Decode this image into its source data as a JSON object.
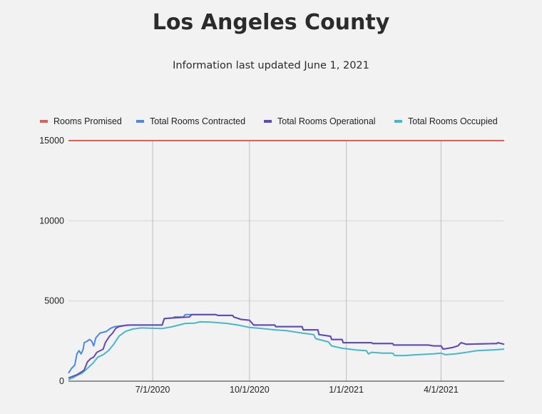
{
  "title": "Los Angeles County",
  "subtitle": "Information last updated June 1, 2021",
  "chart_data": {
    "type": "line",
    "x_axis": {
      "type": "date",
      "min": "2020-04-12",
      "max": "2021-05-31",
      "ticks": [
        "2020-07-01",
        "2020-10-01",
        "2021-01-01",
        "2021-04-01"
      ],
      "tick_labels": [
        "7/1/2020",
        "10/1/2020",
        "1/1/2021",
        "4/1/2021"
      ]
    },
    "y_axis": {
      "min": 0,
      "max": 15000,
      "ticks": [
        0,
        5000,
        10000,
        15000
      ],
      "tick_labels": [
        "0",
        "5000",
        "10000",
        "15000"
      ]
    },
    "legend_position": "top",
    "series": [
      {
        "name": "Rooms Promised",
        "color": "#e06055",
        "points": [
          [
            "2020-04-12",
            15000
          ],
          [
            "2021-05-31",
            15000
          ]
        ]
      },
      {
        "name": "Total Rooms Contracted",
        "color": "#4a89e8",
        "points": [
          [
            "2020-04-12",
            500
          ],
          [
            "2020-04-15",
            800
          ],
          [
            "2020-04-18",
            1000
          ],
          [
            "2020-04-20",
            1700
          ],
          [
            "2020-04-22",
            1900
          ],
          [
            "2020-04-24",
            1700
          ],
          [
            "2020-04-26",
            2000
          ],
          [
            "2020-04-27",
            2400
          ],
          [
            "2020-04-30",
            2500
          ],
          [
            "2020-05-02",
            2600
          ],
          [
            "2020-05-04",
            2500
          ],
          [
            "2020-05-06",
            2200
          ],
          [
            "2020-05-08",
            2700
          ],
          [
            "2020-05-12",
            3000
          ],
          [
            "2020-05-18",
            3100
          ],
          [
            "2020-05-22",
            3300
          ],
          [
            "2020-05-26",
            3400
          ],
          [
            "2020-06-01",
            3450
          ],
          [
            "2020-06-10",
            3500
          ],
          [
            "2020-07-10",
            3500
          ],
          [
            "2020-07-12",
            3900
          ],
          [
            "2020-07-20",
            3950
          ],
          [
            "2020-07-22",
            4000
          ],
          [
            "2020-07-30",
            4000
          ],
          [
            "2020-08-01",
            4150
          ],
          [
            "2020-08-30",
            4150
          ],
          [
            "2020-09-01",
            4100
          ],
          [
            "2020-09-15",
            4100
          ],
          [
            "2020-09-16",
            4000
          ],
          [
            "2020-09-23",
            3850
          ],
          [
            "2020-10-01",
            3800
          ],
          [
            "2020-10-05",
            3500
          ],
          [
            "2020-10-25",
            3500
          ],
          [
            "2020-10-26",
            3400
          ],
          [
            "2020-11-20",
            3400
          ],
          [
            "2020-11-21",
            3200
          ],
          [
            "2020-12-05",
            3200
          ],
          [
            "2020-12-06",
            2900
          ],
          [
            "2020-12-12",
            2850
          ],
          [
            "2020-12-17",
            2800
          ],
          [
            "2020-12-18",
            2600
          ],
          [
            "2020-12-28",
            2600
          ],
          [
            "2020-12-29",
            2400
          ],
          [
            "2021-01-25",
            2400
          ],
          [
            "2021-01-26",
            2350
          ],
          [
            "2021-02-14",
            2350
          ],
          [
            "2021-02-15",
            2250
          ],
          [
            "2021-03-20",
            2250
          ],
          [
            "2021-03-25",
            2200
          ],
          [
            "2021-04-01",
            2200
          ],
          [
            "2021-04-03",
            2000
          ],
          [
            "2021-04-08",
            2050
          ],
          [
            "2021-04-12",
            2100
          ],
          [
            "2021-04-17",
            2200
          ],
          [
            "2021-04-20",
            2400
          ],
          [
            "2021-04-25",
            2300
          ],
          [
            "2021-05-24",
            2350
          ],
          [
            "2021-05-25",
            2400
          ],
          [
            "2021-05-31",
            2300
          ]
        ]
      },
      {
        "name": "Total Rooms Operational",
        "color": "#6548b3",
        "points": [
          [
            "2020-04-12",
            200
          ],
          [
            "2020-04-20",
            400
          ],
          [
            "2020-04-25",
            600
          ],
          [
            "2020-04-27",
            700
          ],
          [
            "2020-04-30",
            1200
          ],
          [
            "2020-05-03",
            1400
          ],
          [
            "2020-05-06",
            1500
          ],
          [
            "2020-05-09",
            1800
          ],
          [
            "2020-05-15",
            2000
          ],
          [
            "2020-05-17",
            2400
          ],
          [
            "2020-05-19",
            2600
          ],
          [
            "2020-05-21",
            2800
          ],
          [
            "2020-05-24",
            3000
          ],
          [
            "2020-05-27",
            3300
          ],
          [
            "2020-05-30",
            3400
          ],
          [
            "2020-06-03",
            3450
          ],
          [
            "2020-06-07",
            3500
          ],
          [
            "2020-07-10",
            3500
          ],
          [
            "2020-07-12",
            3900
          ],
          [
            "2020-07-22",
            3950
          ],
          [
            "2020-08-05",
            4000
          ],
          [
            "2020-08-07",
            4150
          ],
          [
            "2020-08-30",
            4150
          ],
          [
            "2020-09-01",
            4100
          ],
          [
            "2020-09-15",
            4100
          ],
          [
            "2020-09-16",
            4000
          ],
          [
            "2020-09-23",
            3850
          ],
          [
            "2020-10-01",
            3800
          ],
          [
            "2020-10-05",
            3500
          ],
          [
            "2020-10-25",
            3500
          ],
          [
            "2020-10-26",
            3400
          ],
          [
            "2020-11-20",
            3400
          ],
          [
            "2020-11-21",
            3200
          ],
          [
            "2020-12-05",
            3200
          ],
          [
            "2020-12-06",
            2900
          ],
          [
            "2020-12-12",
            2850
          ],
          [
            "2020-12-17",
            2800
          ],
          [
            "2020-12-18",
            2600
          ],
          [
            "2020-12-28",
            2600
          ],
          [
            "2020-12-29",
            2400
          ],
          [
            "2021-01-25",
            2400
          ],
          [
            "2021-01-26",
            2350
          ],
          [
            "2021-02-14",
            2350
          ],
          [
            "2021-02-15",
            2250
          ],
          [
            "2021-03-20",
            2250
          ],
          [
            "2021-03-25",
            2200
          ],
          [
            "2021-04-01",
            2200
          ],
          [
            "2021-04-03",
            2000
          ],
          [
            "2021-04-08",
            2050
          ],
          [
            "2021-04-12",
            2100
          ],
          [
            "2021-04-17",
            2200
          ],
          [
            "2021-04-20",
            2400
          ],
          [
            "2021-04-25",
            2300
          ],
          [
            "2021-05-24",
            2350
          ],
          [
            "2021-05-25",
            2400
          ],
          [
            "2021-05-31",
            2300
          ]
        ]
      },
      {
        "name": "Total Rooms Occupied",
        "color": "#45b8c9",
        "points": [
          [
            "2020-04-12",
            100
          ],
          [
            "2020-04-16",
            200
          ],
          [
            "2020-04-20",
            350
          ],
          [
            "2020-04-25",
            500
          ],
          [
            "2020-04-30",
            800
          ],
          [
            "2020-05-05",
            1100
          ],
          [
            "2020-05-10",
            1500
          ],
          [
            "2020-05-15",
            1650
          ],
          [
            "2020-05-20",
            1900
          ],
          [
            "2020-05-25",
            2300
          ],
          [
            "2020-05-30",
            2800
          ],
          [
            "2020-06-05",
            3100
          ],
          [
            "2020-06-12",
            3250
          ],
          [
            "2020-06-20",
            3320
          ],
          [
            "2020-07-01",
            3300
          ],
          [
            "2020-07-10",
            3280
          ],
          [
            "2020-07-20",
            3400
          ],
          [
            "2020-08-01",
            3600
          ],
          [
            "2020-08-10",
            3620
          ],
          [
            "2020-08-15",
            3700
          ],
          [
            "2020-08-25",
            3680
          ],
          [
            "2020-09-10",
            3600
          ],
          [
            "2020-09-20",
            3500
          ],
          [
            "2020-10-01",
            3350
          ],
          [
            "2020-10-10",
            3300
          ],
          [
            "2020-10-25",
            3200
          ],
          [
            "2020-11-05",
            3150
          ],
          [
            "2020-11-20",
            3000
          ],
          [
            "2020-12-01",
            2900
          ],
          [
            "2020-12-03",
            2650
          ],
          [
            "2020-12-15",
            2450
          ],
          [
            "2020-12-18",
            2200
          ],
          [
            "2020-12-28",
            2050
          ],
          [
            "2021-01-10",
            1950
          ],
          [
            "2021-01-20",
            1900
          ],
          [
            "2021-01-22",
            1700
          ],
          [
            "2021-01-25",
            1800
          ],
          [
            "2021-02-05",
            1750
          ],
          [
            "2021-02-14",
            1750
          ],
          [
            "2021-02-16",
            1600
          ],
          [
            "2021-02-25",
            1600
          ],
          [
            "2021-03-10",
            1650
          ],
          [
            "2021-03-25",
            1700
          ],
          [
            "2021-04-01",
            1750
          ],
          [
            "2021-04-05",
            1650
          ],
          [
            "2021-04-15",
            1700
          ],
          [
            "2021-04-25",
            1800
          ],
          [
            "2021-05-05",
            1900
          ],
          [
            "2021-05-20",
            1950
          ],
          [
            "2021-05-31",
            2000
          ]
        ]
      }
    ]
  }
}
